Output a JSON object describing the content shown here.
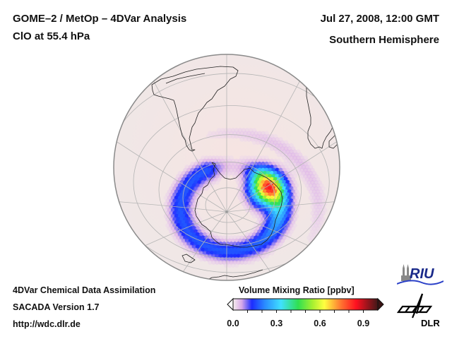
{
  "header": {
    "title_line1": "GOME–2 / MetOp – 4DVar Analysis",
    "title_line2": "ClO at 55.4 hPa",
    "date": "Jul 27, 2008, 12:00 GMT",
    "hemisphere": "Southern Hemisphere"
  },
  "footer": {
    "line1": "4DVar Chemical Data Assimilation",
    "line2": "SACADA Version 1.7",
    "line3": "http://wdc.dlr.de"
  },
  "map": {
    "projection": "orthographic, south polar view",
    "species": "ClO",
    "pressure_level": "55.4 hPa",
    "features": {
      "vortex_ring": "enhanced ClO ring around Antarctica, ~0.1-0.2 ppbv",
      "hotspot": "maximum near 0.75 ppbv over Antarctic coast (eastern sector)"
    },
    "colors": {
      "ocean_fill": "#f3e6e4",
      "grid": "#b8b8b8",
      "coast": "#222222",
      "limb": "#888888"
    }
  },
  "colorbar": {
    "title": "Volume Mixing Ratio [ppbv]",
    "min": 0.0,
    "max": 1.0,
    "extend": "both",
    "ticks": [
      "0.0",
      "0.3",
      "0.6",
      "0.9"
    ],
    "tick_values": [
      0.0,
      0.3,
      0.6,
      0.9
    ],
    "stops": [
      {
        "v": 0.0,
        "c": "#f7efee"
      },
      {
        "v": 0.06,
        "c": "#d8a8e8"
      },
      {
        "v": 0.13,
        "c": "#1c2cff"
      },
      {
        "v": 0.22,
        "c": "#2a8cff"
      },
      {
        "v": 0.33,
        "c": "#40e0ff"
      },
      {
        "v": 0.45,
        "c": "#30e050"
      },
      {
        "v": 0.55,
        "c": "#a8f030"
      },
      {
        "v": 0.63,
        "c": "#ffff40"
      },
      {
        "v": 0.75,
        "c": "#ff7030"
      },
      {
        "v": 0.85,
        "c": "#ff1020"
      },
      {
        "v": 1.0,
        "c": "#401818"
      }
    ]
  },
  "logos": {
    "riu": "RIU",
    "dlr": "DLR"
  }
}
